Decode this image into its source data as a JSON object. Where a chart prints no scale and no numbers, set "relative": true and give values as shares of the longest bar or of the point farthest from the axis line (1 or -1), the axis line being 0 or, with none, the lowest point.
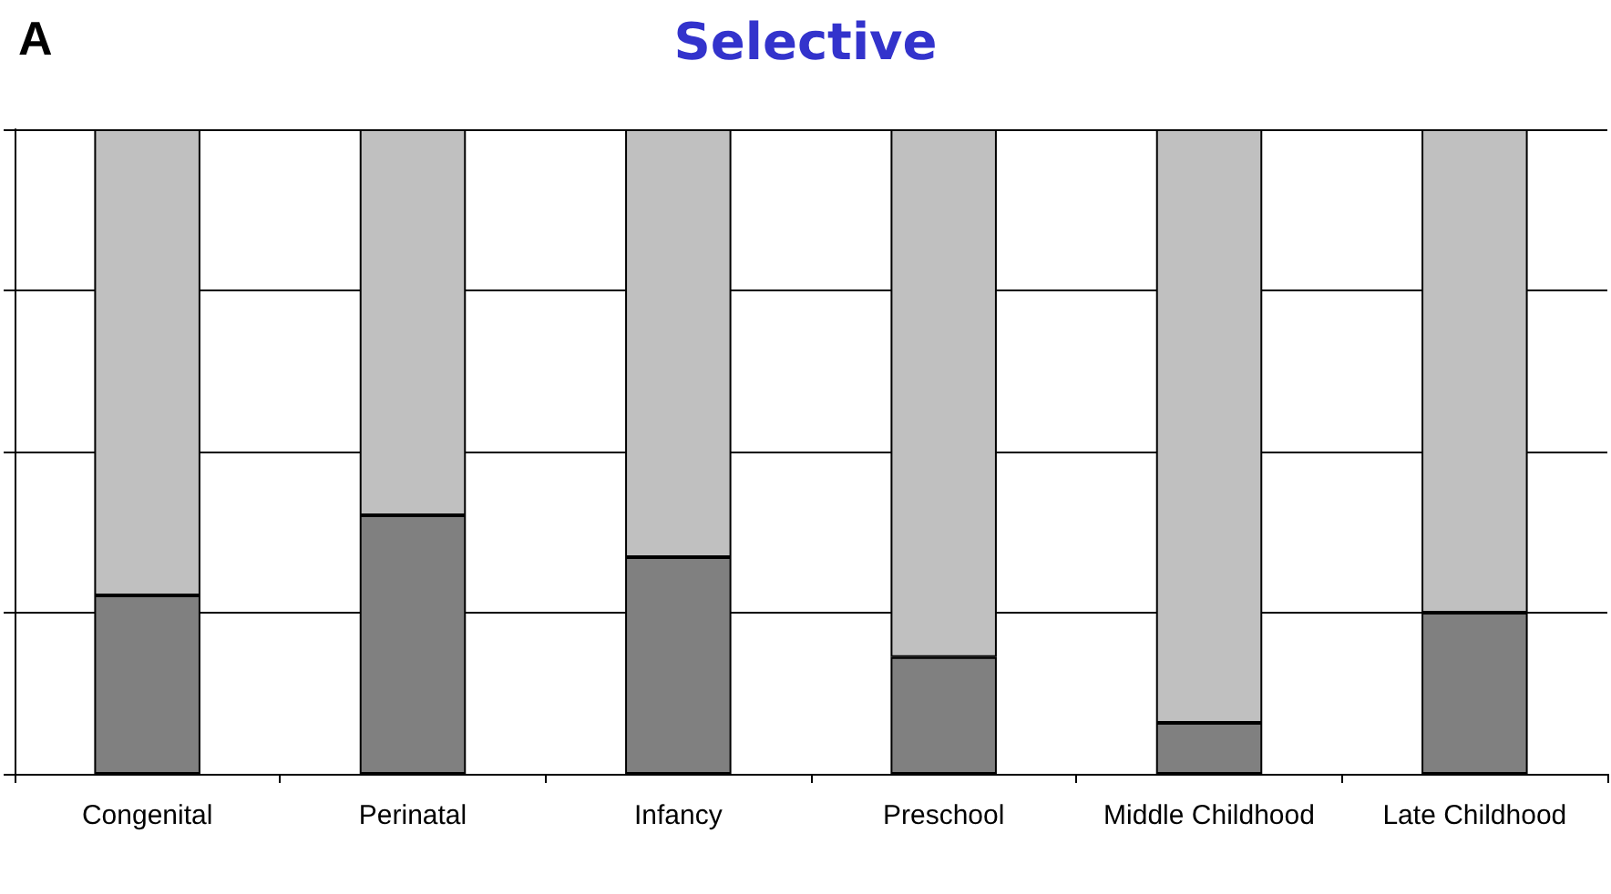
{
  "chart_data": {
    "type": "bar",
    "title": "Selective",
    "annotations": [
      "A"
    ],
    "categories": [
      "Congenital",
      "Perinatal",
      "Infancy",
      "Preschool",
      "Middle Childhood",
      "Late Childhood"
    ],
    "stacked": true,
    "relative": true,
    "grid": "y",
    "series": [
      {
        "color": "#808080",
        "values": [
          0.277,
          0.401,
          0.336,
          0.181,
          0.079,
          0.25
        ]
      },
      {
        "color": "#c0c0c0",
        "values": [
          0.723,
          0.599,
          0.664,
          0.819,
          0.921,
          0.75
        ]
      }
    ]
  }
}
